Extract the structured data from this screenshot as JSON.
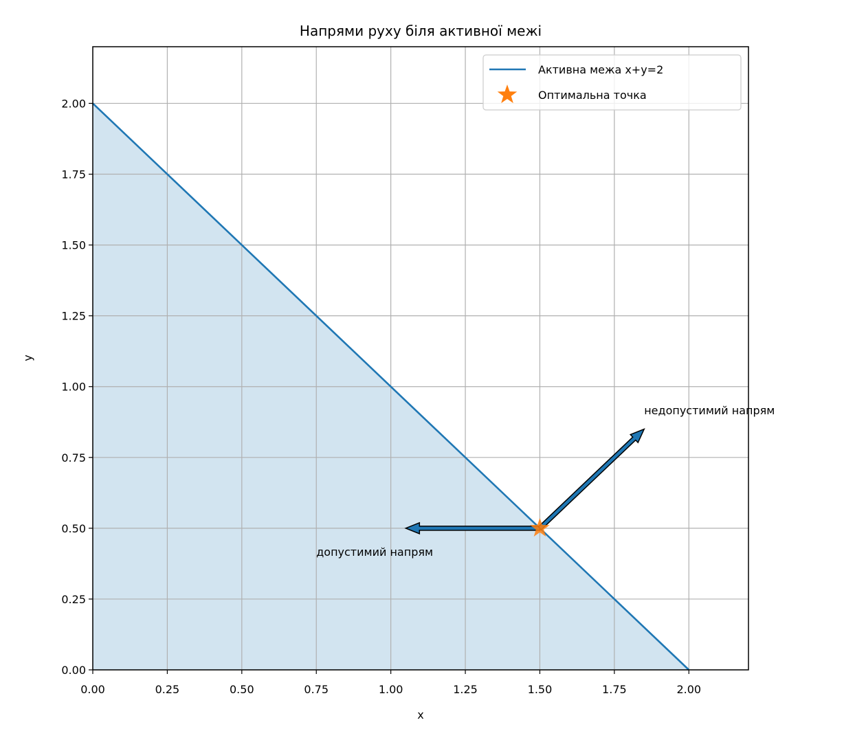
{
  "chart_data": {
    "type": "line",
    "title": "Напрями руху біля активної межі",
    "xlabel": "x",
    "ylabel": "y",
    "xlim": [
      0,
      2.2
    ],
    "ylim": [
      0,
      2.2
    ],
    "xticks": [
      {
        "value": 0,
        "label": "0.00"
      },
      {
        "value": 0.25,
        "label": "0.25"
      },
      {
        "value": 0.5,
        "label": "0.50"
      },
      {
        "value": 0.75,
        "label": "0.75"
      },
      {
        "value": 1,
        "label": "1.00"
      },
      {
        "value": 1.25,
        "label": "1.25"
      },
      {
        "value": 1.5,
        "label": "1.50"
      },
      {
        "value": 1.75,
        "label": "1.75"
      },
      {
        "value": 2,
        "label": "2.00"
      }
    ],
    "yticks": [
      {
        "value": 0,
        "label": "0.00"
      },
      {
        "value": 0.25,
        "label": "0.25"
      },
      {
        "value": 0.5,
        "label": "0.50"
      },
      {
        "value": 0.75,
        "label": "0.75"
      },
      {
        "value": 1,
        "label": "1.00"
      },
      {
        "value": 1.25,
        "label": "1.25"
      },
      {
        "value": 1.5,
        "label": "1.50"
      },
      {
        "value": 1.75,
        "label": "1.75"
      },
      {
        "value": 2,
        "label": "2.00"
      }
    ],
    "grid": true,
    "legend": "upper right",
    "series": [
      {
        "name": "Активна межа x+y=2",
        "color": "#1f77b4",
        "x": [
          0,
          2
        ],
        "values": [
          2,
          0
        ],
        "fill": true
      }
    ],
    "points": [
      {
        "name": "Оптимальна точка",
        "color": "#ff7f0e",
        "marker": "star",
        "x": 1.5,
        "y": 0.5
      }
    ],
    "annotations": [
      {
        "text": "допустимий напрям",
        "x": 0.75,
        "y": 0.4,
        "arrow_from": [
          1.5,
          0.5
        ],
        "arrow_to": [
          1.05,
          0.5
        ]
      },
      {
        "text": "недопустимий напрям",
        "x": 1.85,
        "y": 0.9,
        "arrow_from": [
          1.5,
          0.5
        ],
        "arrow_to": [
          1.85,
          0.85
        ]
      }
    ]
  }
}
